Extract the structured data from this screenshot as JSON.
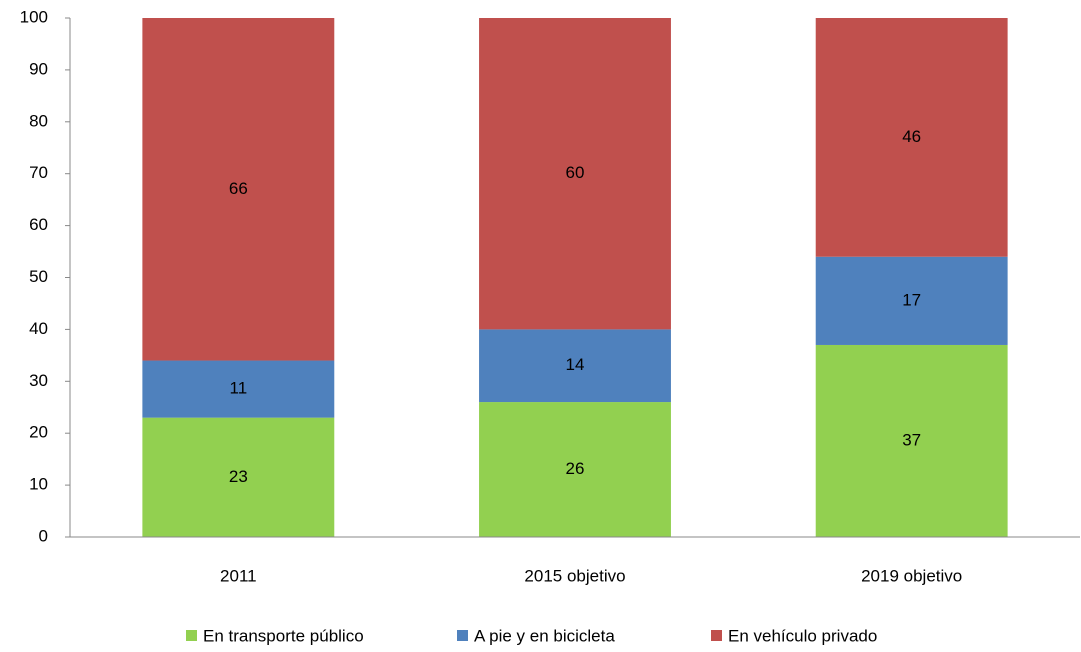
{
  "chart_data": {
    "type": "stacked_bar",
    "categories": [
      "2011",
      "2015 objetivo",
      "2019 objetivo"
    ],
    "series": [
      {
        "name": "En transporte público",
        "color": "#92d050",
        "values": [
          23,
          26,
          37
        ]
      },
      {
        "name": "A pie y en bicicleta",
        "color": "#4f81bd",
        "values": [
          11,
          14,
          17
        ]
      },
      {
        "name": "En vehículo privado",
        "color": "#c0504d",
        "values": [
          66,
          60,
          46
        ]
      }
    ],
    "ylim": [
      0,
      100
    ],
    "yticks": [
      0,
      10,
      20,
      30,
      40,
      50,
      60,
      70,
      80,
      90,
      100
    ],
    "grid": false,
    "legend": "bottom"
  }
}
